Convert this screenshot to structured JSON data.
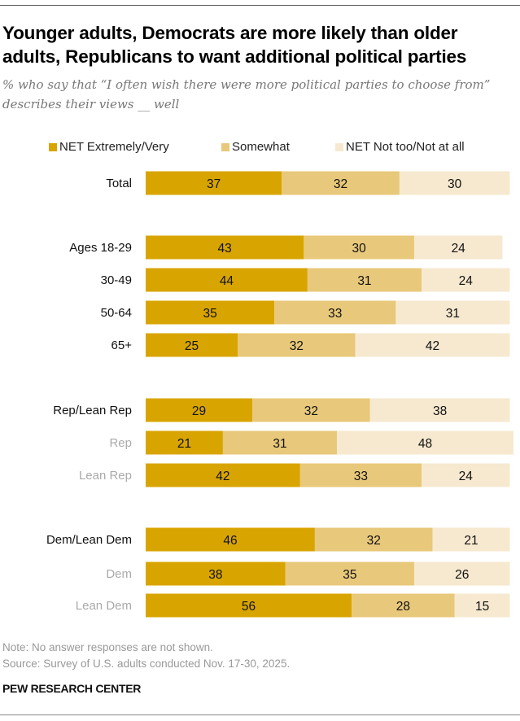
{
  "title": "Younger adults, Democrats are more likely than older adults, Republicans to want additional political parties",
  "subtitle": "% who say that “I often wish there were more political parties to choose from” describes their views __ well",
  "note": "Note: No answer responses are not shown.",
  "source": "Source: Survey of U.S. adults conducted Nov. 17-30, 2025.",
  "brand": "PEW RESEARCH CENTER",
  "chart_data": {
    "type": "bar",
    "orientation": "horizontal-stacked",
    "xlim": [
      0,
      100
    ],
    "grid": false,
    "legend_position": "top",
    "series": [
      {
        "name": "NET Extremely/Very",
        "color": "#d8a500",
        "values": [
          37,
          43,
          44,
          35,
          25,
          29,
          21,
          42,
          46,
          38,
          56
        ]
      },
      {
        "name": "Somewhat",
        "color": "#e8c87a",
        "values": [
          32,
          30,
          31,
          33,
          32,
          32,
          31,
          33,
          32,
          35,
          28
        ]
      },
      {
        "name": "NET Not too/Not at all",
        "color": "#f6e9cf",
        "values": [
          30,
          24,
          24,
          31,
          42,
          38,
          48,
          24,
          21,
          26,
          15
        ]
      }
    ],
    "categories": [
      "Total",
      "Ages 18-29",
      "30-49",
      "50-64",
      "65+",
      "Rep/Lean Rep",
      "Rep",
      "Lean Rep",
      "Dem/Lean Dem",
      "Dem",
      "Lean Dem"
    ],
    "category_style": [
      "main",
      "main",
      "main",
      "main",
      "main",
      "main",
      "sub",
      "sub",
      "main",
      "sub",
      "sub"
    ]
  }
}
